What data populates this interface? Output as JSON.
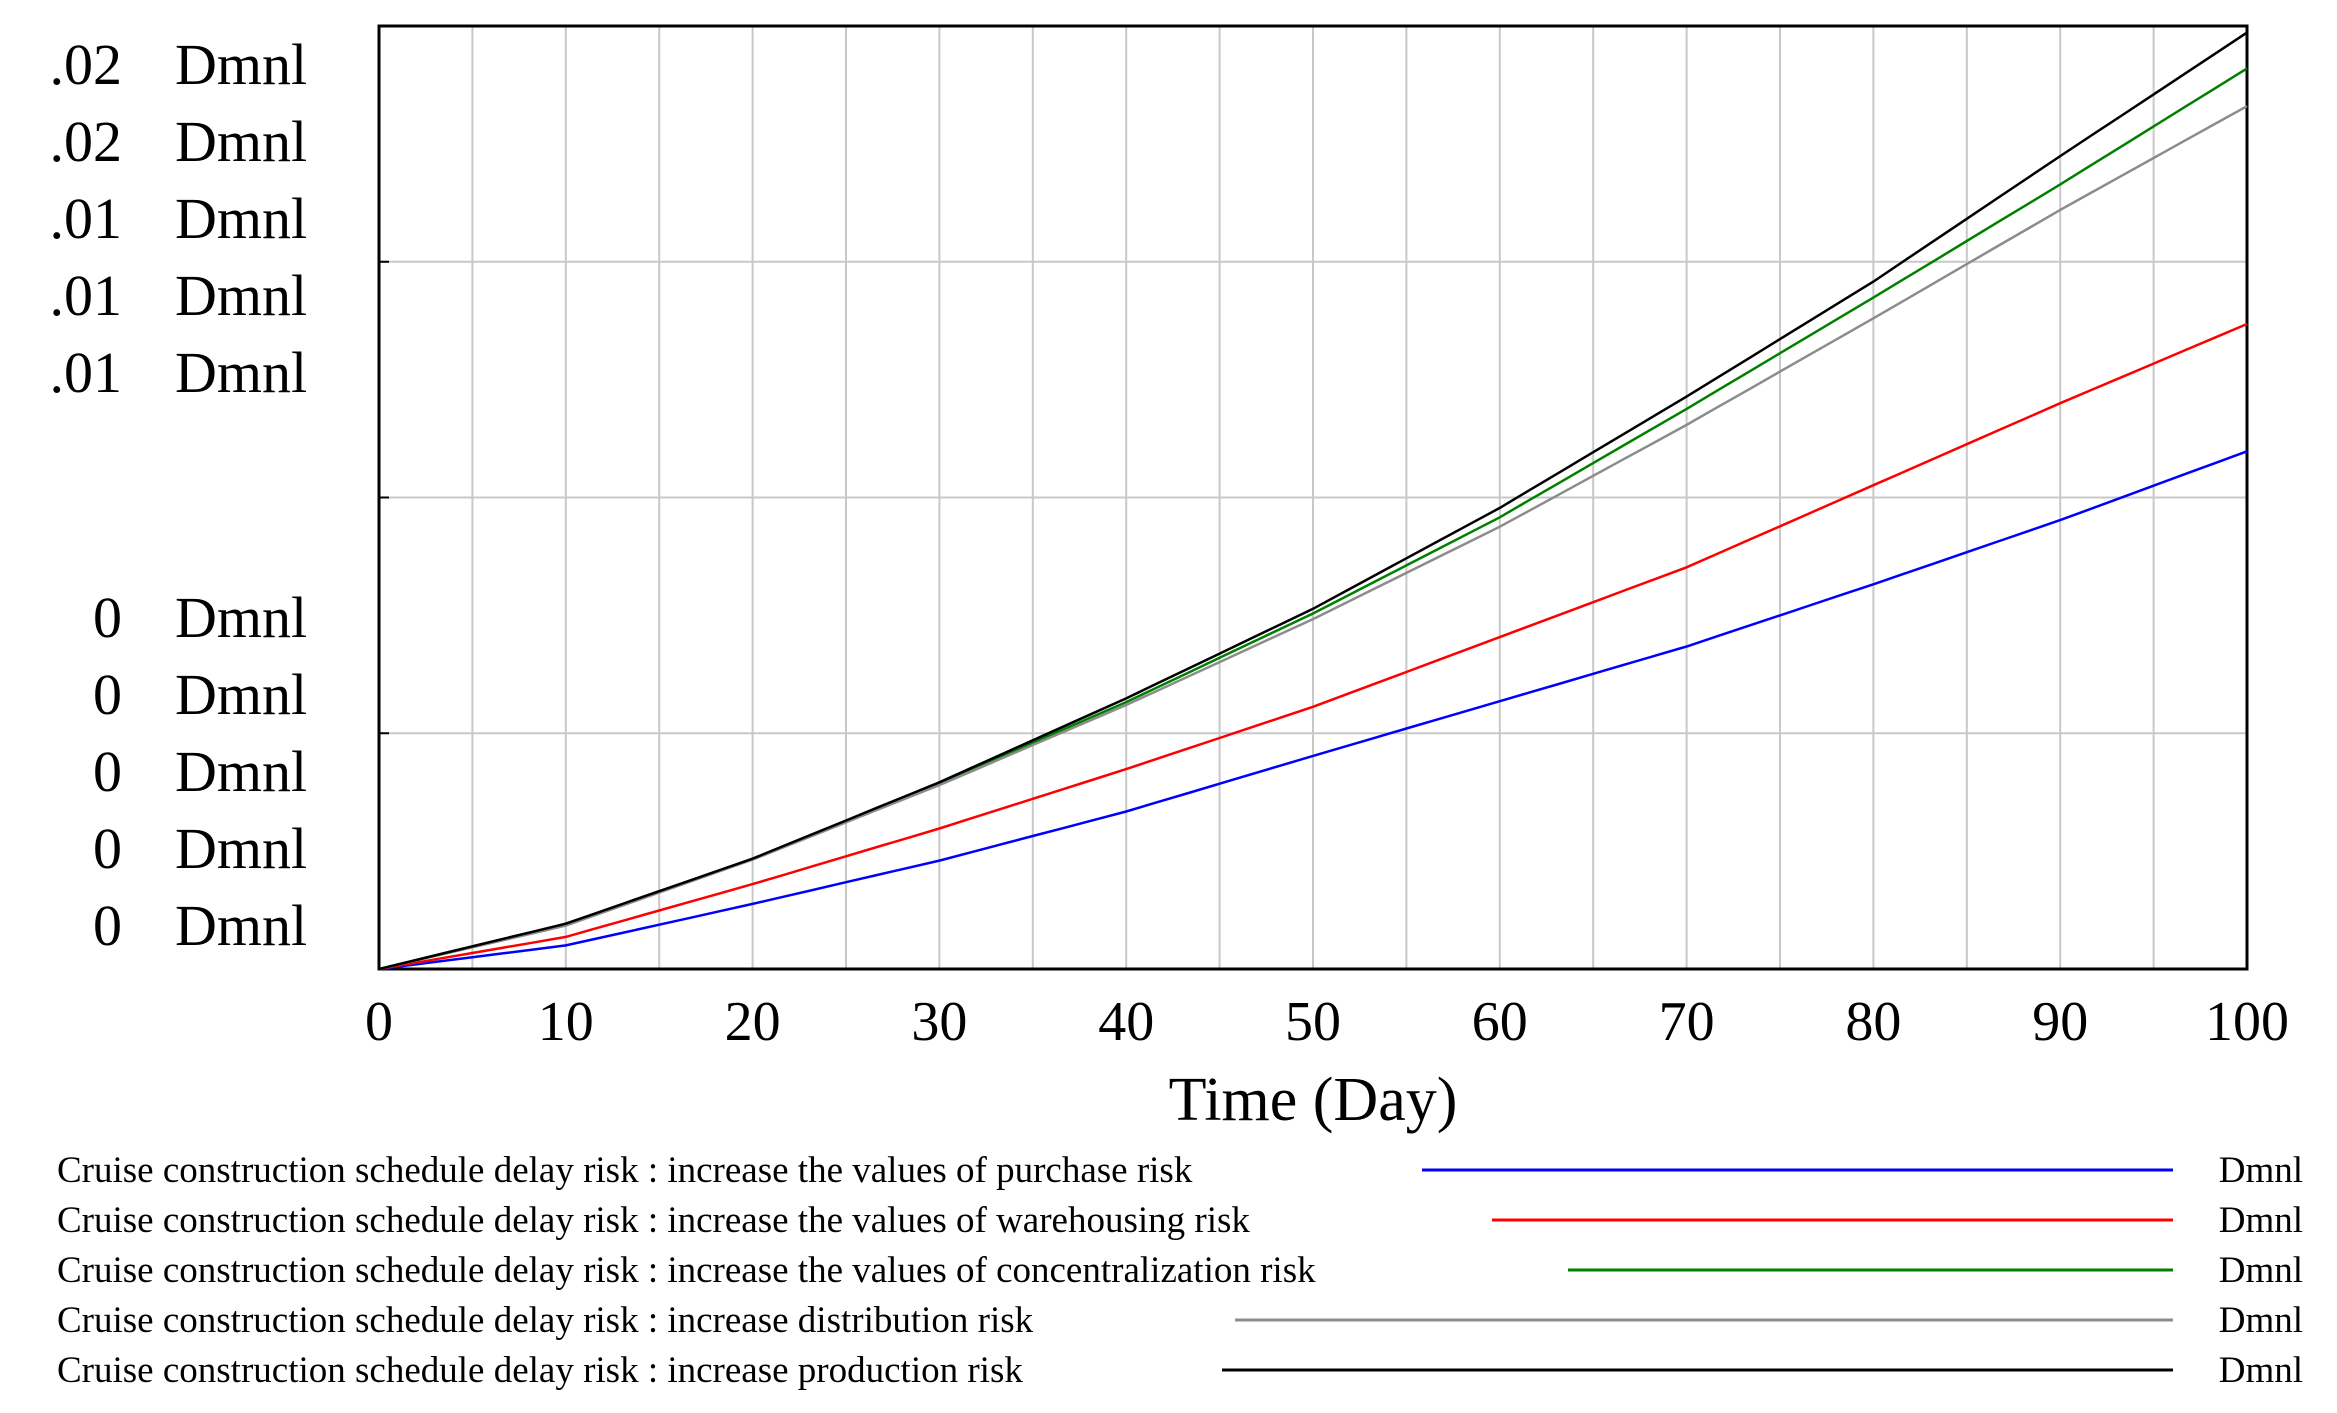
{
  "chart_data": {
    "type": "line",
    "x_label": "Time (Day)",
    "x_ticks": [
      "0",
      "10",
      "20",
      "30",
      "40",
      "50",
      "60",
      "70",
      "80",
      "90",
      "100"
    ],
    "x_range": [
      0,
      100
    ],
    "y_range": [
      0,
      1
    ],
    "grid": true,
    "legend_placement": "bottom",
    "y_tick_labels": [
      [
        ".02",
        ".02",
        ".01",
        ".01",
        ".01"
      ],
      [
        "0",
        "0",
        "0",
        "0",
        "0"
      ]
    ],
    "y_unit": "Dmnl",
    "series": [
      {
        "name": "Cruise construction schedule delay risk : increase the values of purchase risk",
        "unit": "Dmnl",
        "color": "#0000ff",
        "x": [
          0,
          10,
          20,
          30,
          40,
          50,
          60,
          70,
          80,
          90,
          100
        ],
        "y": [
          0,
          0.025,
          0.069,
          0.115,
          0.167,
          0.226,
          0.284,
          0.342,
          0.408,
          0.476,
          0.549
        ]
      },
      {
        "name": "Cruise construction schedule delay risk : increase the values of warehousing risk",
        "unit": "Dmnl",
        "color": "#ff0000",
        "x": [
          0,
          10,
          20,
          30,
          40,
          50,
          60,
          70,
          80,
          90,
          100
        ],
        "y": [
          0,
          0.034,
          0.09,
          0.149,
          0.212,
          0.278,
          0.352,
          0.426,
          0.513,
          0.6,
          0.684
        ]
      },
      {
        "name": "Cruise construction schedule delay risk : increase the values of concentralization risk",
        "unit": "Dmnl",
        "color": "#008000",
        "x": [
          0,
          10,
          20,
          30,
          40,
          50,
          60,
          70,
          80,
          90,
          100
        ],
        "y": [
          0,
          0.048,
          0.117,
          0.197,
          0.283,
          0.377,
          0.479,
          0.594,
          0.712,
          0.832,
          0.955
        ]
      },
      {
        "name": "Cruise construction schedule delay risk : increase distribution risk",
        "unit": "Dmnl",
        "color": "#8c8c8c",
        "x": [
          0,
          10,
          20,
          30,
          40,
          50,
          60,
          70,
          80,
          90,
          100
        ],
        "y": [
          0,
          0.046,
          0.116,
          0.195,
          0.28,
          0.371,
          0.469,
          0.577,
          0.69,
          0.805,
          0.915
        ]
      },
      {
        "name": "Cruise construction schedule delay risk : increase production risk",
        "unit": "Dmnl",
        "color": "#000000",
        "x": [
          0,
          10,
          20,
          30,
          40,
          50,
          60,
          70,
          80,
          90,
          100
        ],
        "y": [
          0,
          0.048,
          0.117,
          0.198,
          0.287,
          0.382,
          0.489,
          0.607,
          0.729,
          0.862,
          0.993
        ]
      }
    ]
  }
}
